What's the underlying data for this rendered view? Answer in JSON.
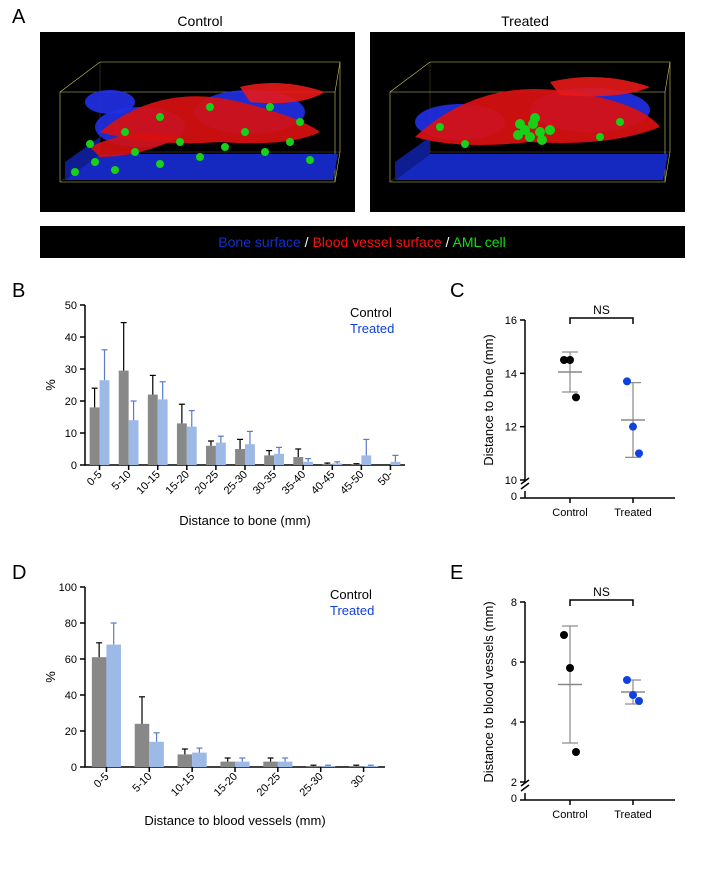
{
  "panelA": {
    "label": "A",
    "titles": [
      "Control",
      "Treated"
    ],
    "legend_entries": [
      {
        "text": "Bone surface",
        "color": "#1030d0"
      },
      {
        "text": " / ",
        "color": "#ffffff"
      },
      {
        "text": "Blood vessel surface",
        "color": "#ff1010"
      },
      {
        "text": " / ",
        "color": "#ffffff"
      },
      {
        "text": "AML cell",
        "color": "#10e010"
      }
    ],
    "image_bg": "#000000",
    "colors": {
      "bone": "#2030e0",
      "vessel": "#e01010",
      "cell": "#20d020",
      "wire": "#cccc66"
    }
  },
  "panelB": {
    "label": "B",
    "ylabel": "%",
    "xlabel": "Distance to bone (mm)",
    "categories": [
      "0-5",
      "5-10",
      "10-15",
      "15-20",
      "20-25",
      "25-30",
      "30-35",
      "35-40",
      "40-45",
      "45-50",
      "50-"
    ],
    "control": [
      18,
      29.5,
      22,
      13,
      6,
      5,
      3,
      2.5,
      0.3,
      0.2,
      0
    ],
    "treated": [
      26.5,
      14,
      20.5,
      12,
      7,
      6.5,
      3.5,
      1,
      0.5,
      3,
      1
    ],
    "control_err": [
      6,
      15,
      6,
      6,
      1.5,
      3,
      1.5,
      2.5,
      0.3,
      0.2,
      0
    ],
    "treated_err": [
      9.5,
      6,
      5.5,
      5,
      2,
      4,
      2,
      1,
      0.5,
      5,
      2
    ],
    "ylim": [
      0,
      50
    ],
    "ytick_step": 10,
    "legend": [
      {
        "text": "Control",
        "color": "#000000"
      },
      {
        "text": "Treated",
        "color": "#1040e0"
      }
    ],
    "bar_colors": {
      "control": "#888888",
      "treated": "#9db9e6"
    }
  },
  "panelC": {
    "label": "C",
    "ylabel": "Distance to bone (mm)",
    "groups": [
      "Control",
      "Treated"
    ],
    "ns_label": "NS",
    "ylim": [
      10,
      16
    ],
    "yticks": [
      10,
      12,
      14,
      16
    ],
    "y_break": true,
    "control_points": [
      14.5,
      14.5,
      13.1
    ],
    "treated_points": [
      13.7,
      12.0,
      11.0
    ],
    "control_mean": 14.05,
    "control_err": 0.75,
    "treated_mean": 12.25,
    "treated_err": 1.4,
    "point_colors": {
      "control": "#000000",
      "treated": "#1040e0"
    },
    "err_color": "#888888"
  },
  "panelD": {
    "label": "D",
    "ylabel": "%",
    "xlabel": "Distance to blood vessels (mm)",
    "categories": [
      "0-5",
      "5-10",
      "10-15",
      "15-20",
      "20-25",
      "25-30",
      "30-"
    ],
    "control": [
      61,
      24,
      7,
      3,
      3,
      0.5,
      0.5
    ],
    "treated": [
      68,
      14,
      8,
      3,
      3,
      0.5,
      0.5
    ],
    "control_err": [
      8,
      15,
      3,
      2,
      2,
      0.5,
      0.5
    ],
    "treated_err": [
      12,
      5,
      2.5,
      2,
      2,
      0.5,
      0.5
    ],
    "ylim": [
      0,
      100
    ],
    "ytick_step": 20,
    "legend": [
      {
        "text": "Control",
        "color": "#000000"
      },
      {
        "text": "Treated",
        "color": "#1040e0"
      }
    ],
    "bar_colors": {
      "control": "#888888",
      "treated": "#9db9e6"
    }
  },
  "panelE": {
    "label": "E",
    "ylabel": "Distance to blood vessels (mm)",
    "groups": [
      "Control",
      "Treated"
    ],
    "ns_label": "NS",
    "ylim": [
      2,
      8
    ],
    "yticks": [
      2,
      4,
      6,
      8
    ],
    "y_break": true,
    "control_points": [
      6.9,
      5.8,
      3.0
    ],
    "treated_points": [
      5.4,
      4.9,
      4.7
    ],
    "control_mean": 5.25,
    "control_err": 1.95,
    "treated_mean": 5.0,
    "treated_err": 0.4,
    "point_colors": {
      "control": "#000000",
      "treated": "#1040e0"
    },
    "err_color": "#888888"
  }
}
